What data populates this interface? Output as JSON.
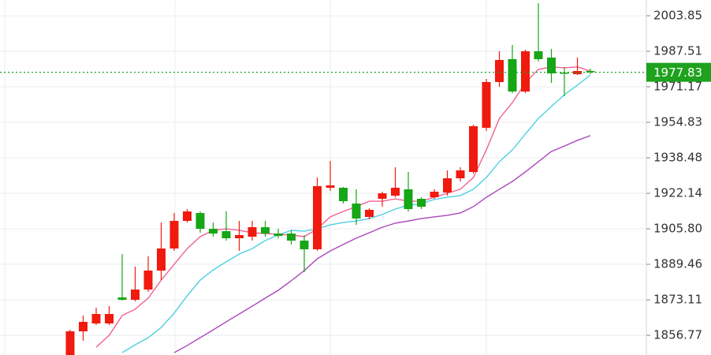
{
  "chart_data": {
    "type": "candlestick",
    "ylim": [
      1847.72,
      2011.11
    ],
    "yticks": [
      2003.85,
      1987.51,
      1971.17,
      1954.83,
      1938.48,
      1922.14,
      {
        "value": 1905.8,
        "label": "1905.80"
      },
      1889.46,
      1873.11,
      1856.77
    ],
    "grid": true,
    "up_color": "#f01a0e",
    "down_color": "#16a616",
    "open": [
      1847.72,
      1858.61,
      1862.24,
      1862.24,
      1874.22,
      1873.13,
      1877.85,
      1886.57,
      1896.74,
      1909.44,
      1913.07,
      1905.81,
      1904.72,
      1901.46,
      1902.18,
      1906.54,
      1903.63,
      1903.63,
      1900.37,
      1896.37,
      1924.69,
      1924.69,
      1917.43,
      1911.26,
      1919.61,
      1921.06,
      1923.97,
      1919.61,
      1920.34,
      1922.52,
      1929.05,
      1931.96,
      1952.29,
      1973.35,
      1983.88,
      1968.99,
      1987.51,
      1984.61,
      1977.71,
      1976.98,
      1978.43
    ],
    "high": [
      1859.34,
      1865.87,
      1869.5,
      1870.23,
      1894.19,
      1888.38,
      1893.1,
      1908.72,
      1913.07,
      1914.89,
      1913.8,
      1908.72,
      1913.8,
      1909.44,
      1909.44,
      1909.44,
      1905.81,
      1905.09,
      1902.91,
      1929.41,
      1937.04,
      1925.06,
      1923.97,
      1915.25,
      1922.88,
      1934.13,
      1931.96,
      1920.34,
      1923.97,
      1932.68,
      1934.13,
      1953.74,
      1974.8,
      1987.51,
      1990.42,
      1988.24,
      2009.66,
      1988.6,
      1980.25,
      1984.61,
      1979.52
    ],
    "low": [
      1847.72,
      1854.25,
      1861.51,
      1861.51,
      1872.77,
      1872.41,
      1876.76,
      1882.21,
      1895.65,
      1908.72,
      1904.0,
      1902.18,
      1900.37,
      1895.65,
      1900.37,
      1902.18,
      1901.46,
      1898.55,
      1885.84,
      1895.65,
      1923.24,
      1917.43,
      1907.63,
      1910.17,
      1915.98,
      1920.34,
      1913.8,
      1914.89,
      1919.61,
      1921.06,
      1927.6,
      1931.23,
      1950.84,
      1971.17,
      1968.27,
      1968.27,
      1982.79,
      1972.99,
      1966.81,
      1976.62,
      1976.98
    ],
    "close": [
      1858.61,
      1862.97,
      1866.6,
      1866.6,
      1873.13,
      1877.85,
      1886.57,
      1896.74,
      1909.44,
      1913.8,
      1905.81,
      1903.63,
      1901.46,
      1902.91,
      1906.54,
      1903.63,
      1902.55,
      1900.37,
      1896.37,
      1925.42,
      1925.78,
      1918.52,
      1910.53,
      1914.53,
      1922.15,
      1924.69,
      1914.89,
      1915.98,
      1922.88,
      1929.05,
      1932.68,
      1953.02,
      1973.35,
      1983.52,
      1968.99,
      1987.51,
      1983.88,
      1977.34,
      1977.34,
      1978.43,
      1977.83
    ],
    "series": [
      {
        "color": "#f06292",
        "values": [
          null,
          null,
          1851.3,
          1856.8,
          1865.9,
          1868.8,
          1873.9,
          1882.2,
          1889.5,
          1896.7,
          1902.2,
          1905.1,
          1905.8,
          1905.1,
          1904.0,
          1903.6,
          1903.3,
          1902.9,
          1902.2,
          1905.8,
          1911.3,
          1913.8,
          1916.0,
          1918.5,
          1918.5,
          1919.6,
          1918.5,
          1918.5,
          1920.3,
          1922.2,
          1924.0,
          1929.4,
          1942.1,
          1956.6,
          1963.9,
          1973.0,
          1979.2,
          1980.3,
          1979.9,
          1980.3,
          1978.4
        ]
      },
      {
        "color": "#4dd0e1",
        "values": [
          null,
          null,
          null,
          null,
          1848.8,
          1852.4,
          1855.7,
          1860.4,
          1867.0,
          1875.0,
          1882.2,
          1886.9,
          1890.6,
          1894.2,
          1896.7,
          1900.4,
          1902.9,
          1905.1,
          1904.7,
          1905.8,
          1907.6,
          1908.7,
          1909.4,
          1910.5,
          1912.4,
          1914.9,
          1916.7,
          1917.4,
          1919.3,
          1920.3,
          1921.1,
          1924.0,
          1929.4,
          1936.7,
          1942.1,
          1949.4,
          1956.6,
          1962.1,
          1967.5,
          1971.9,
          1976.6
        ]
      },
      {
        "color": "#ab47bc",
        "values": [
          null,
          null,
          null,
          null,
          null,
          null,
          null,
          null,
          1848.8,
          1852.1,
          1855.7,
          1859.3,
          1863.0,
          1866.6,
          1870.2,
          1873.9,
          1877.5,
          1881.9,
          1886.6,
          1892.0,
          1895.6,
          1898.6,
          1901.5,
          1904.0,
          1906.5,
          1908.4,
          1909.4,
          1910.5,
          1911.3,
          1912.0,
          1913.1,
          1916.0,
          1920.3,
          1924.0,
          1927.6,
          1932.0,
          1936.7,
          1941.4,
          1943.9,
          1946.5,
          1948.7
        ]
      }
    ],
    "last_price": 1977.83,
    "last_price_color": "#1ea21e"
  }
}
